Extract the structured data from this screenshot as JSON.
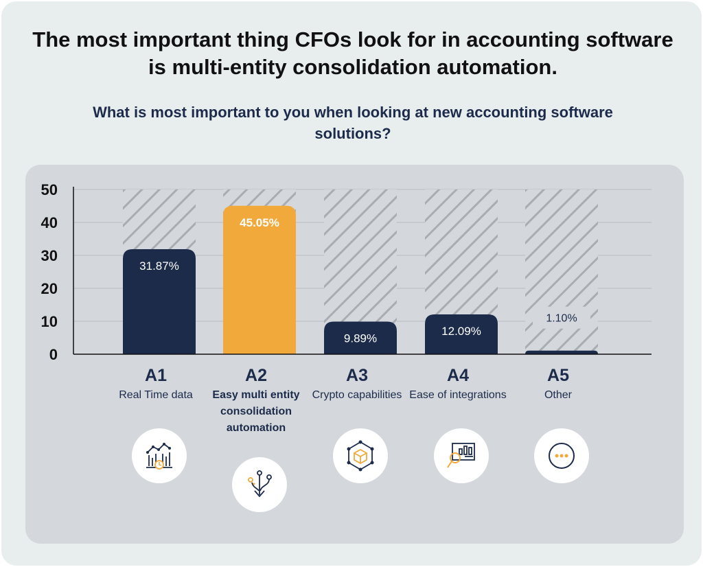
{
  "headline": "The most important thing CFOs look for in accounting software is multi-entity consolidation automation.",
  "question": "What is most important to you when looking at new accounting software solutions?",
  "colors": {
    "bar": "#1c2b4a",
    "highlight": "#f2a93b",
    "hatch": "#a8adb3",
    "grid": "#b7bcc2"
  },
  "categories": [
    {
      "code": "A1",
      "label": "Real Time data",
      "icon": "real-time-data-chart-icon",
      "highlight": false
    },
    {
      "code": "A2",
      "label": "Easy multi entity consolidation automation",
      "icon": "merge-arrows-icon",
      "highlight": true
    },
    {
      "code": "A3",
      "label": "Crypto capabilities",
      "icon": "crypto-cube-icon",
      "highlight": false
    },
    {
      "code": "A4",
      "label": "Ease of integrations",
      "icon": "integration-magnifier-icon",
      "highlight": false
    },
    {
      "code": "A5",
      "label": "Other",
      "icon": "more-dots-icon",
      "highlight": false
    }
  ],
  "chart_data": {
    "type": "bar",
    "title": "What is most important to you when looking at new accounting software solutions?",
    "categories": [
      "A1",
      "A2",
      "A3",
      "A4",
      "A5"
    ],
    "values": [
      31.87,
      45.05,
      9.89,
      12.09,
      1.1
    ],
    "value_labels": [
      "31.87%",
      "45.05%",
      "9.89%",
      "12.09%",
      "1.10%"
    ],
    "ylim": [
      0,
      50
    ],
    "yticks": [
      0,
      10,
      20,
      30,
      40,
      50
    ],
    "xlabel": "",
    "ylabel": "",
    "grid": true,
    "highlight_index": 1
  }
}
